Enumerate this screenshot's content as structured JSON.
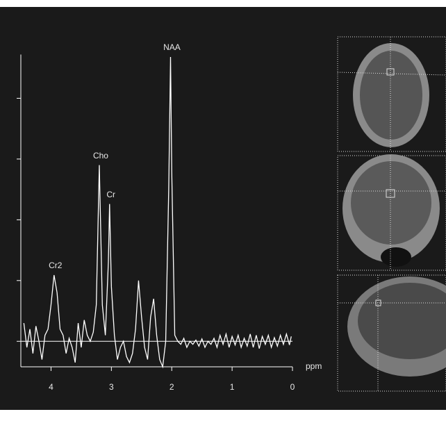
{
  "chart_data": {
    "type": "line",
    "xlabel": "ppm",
    "xlim": [
      4.5,
      0
    ],
    "xticks": [
      4,
      3,
      2,
      1,
      0
    ],
    "ylim": [
      -0.42,
      4.72
    ],
    "yticks": [
      0,
      1,
      2,
      3,
      4
    ],
    "zero_line": true,
    "x": [
      4.45,
      4.4,
      4.35,
      4.3,
      4.25,
      4.2,
      4.15,
      4.1,
      4.05,
      4.0,
      3.95,
      3.9,
      3.85,
      3.8,
      3.75,
      3.7,
      3.65,
      3.6,
      3.55,
      3.5,
      3.45,
      3.4,
      3.35,
      3.3,
      3.25,
      3.2,
      3.15,
      3.1,
      3.05,
      3.03,
      3.0,
      2.95,
      2.9,
      2.85,
      2.8,
      2.75,
      2.7,
      2.65,
      2.6,
      2.55,
      2.5,
      2.45,
      2.4,
      2.35,
      2.3,
      2.25,
      2.2,
      2.15,
      2.1,
      2.05,
      2.02,
      2.0,
      1.95,
      1.9,
      1.85,
      1.8,
      1.75,
      1.7,
      1.65,
      1.6,
      1.55,
      1.5,
      1.45,
      1.4,
      1.35,
      1.3,
      1.25,
      1.2,
      1.15,
      1.1,
      1.05,
      1.0,
      0.95,
      0.9,
      0.85,
      0.8,
      0.75,
      0.7,
      0.65,
      0.6,
      0.55,
      0.5,
      0.45,
      0.4,
      0.35,
      0.3,
      0.25,
      0.2,
      0.15,
      0.1,
      0.05,
      0.02
    ],
    "series": [
      {
        "color": "#ffffff",
        "values": [
          0.3,
          -0.1,
          0.2,
          -0.2,
          0.25,
          0.0,
          -0.3,
          0.1,
          0.2,
          0.6,
          1.09,
          0.8,
          0.2,
          0.1,
          -0.2,
          0.05,
          -0.1,
          -0.35,
          0.3,
          -0.1,
          0.35,
          0.1,
          0.0,
          0.15,
          0.6,
          2.9,
          0.6,
          0.1,
          1.3,
          2.26,
          0.9,
          0.1,
          -0.3,
          -0.1,
          0.0,
          -0.25,
          -0.35,
          -0.2,
          0.2,
          1.0,
          0.4,
          -0.1,
          -0.3,
          0.4,
          0.7,
          0.1,
          -0.3,
          -0.42,
          0.0,
          2.5,
          4.68,
          2.8,
          0.1,
          0.0,
          -0.05,
          0.05,
          -0.1,
          0.0,
          -0.05,
          0.02,
          -0.08,
          0.04,
          -0.1,
          0.0,
          -0.05,
          0.05,
          -0.1,
          0.1,
          -0.05,
          0.12,
          -0.1,
          0.08,
          -0.06,
          0.1,
          -0.1,
          0.05,
          -0.08,
          0.12,
          -0.1,
          0.1,
          -0.12,
          0.08,
          -0.05,
          0.1,
          -0.1,
          0.06,
          -0.08,
          0.1,
          -0.05,
          0.12,
          -0.06,
          0.08
        ]
      }
    ],
    "annotations": [
      {
        "text": "NAA",
        "x": 2.02,
        "y": 4.68
      },
      {
        "text": "Cho",
        "x": 3.2,
        "y": 2.9
      },
      {
        "text": "Cr",
        "x": 3.03,
        "y": 2.26
      },
      {
        "text": "Cr2",
        "x": 3.95,
        "y": 1.09
      }
    ]
  }
}
